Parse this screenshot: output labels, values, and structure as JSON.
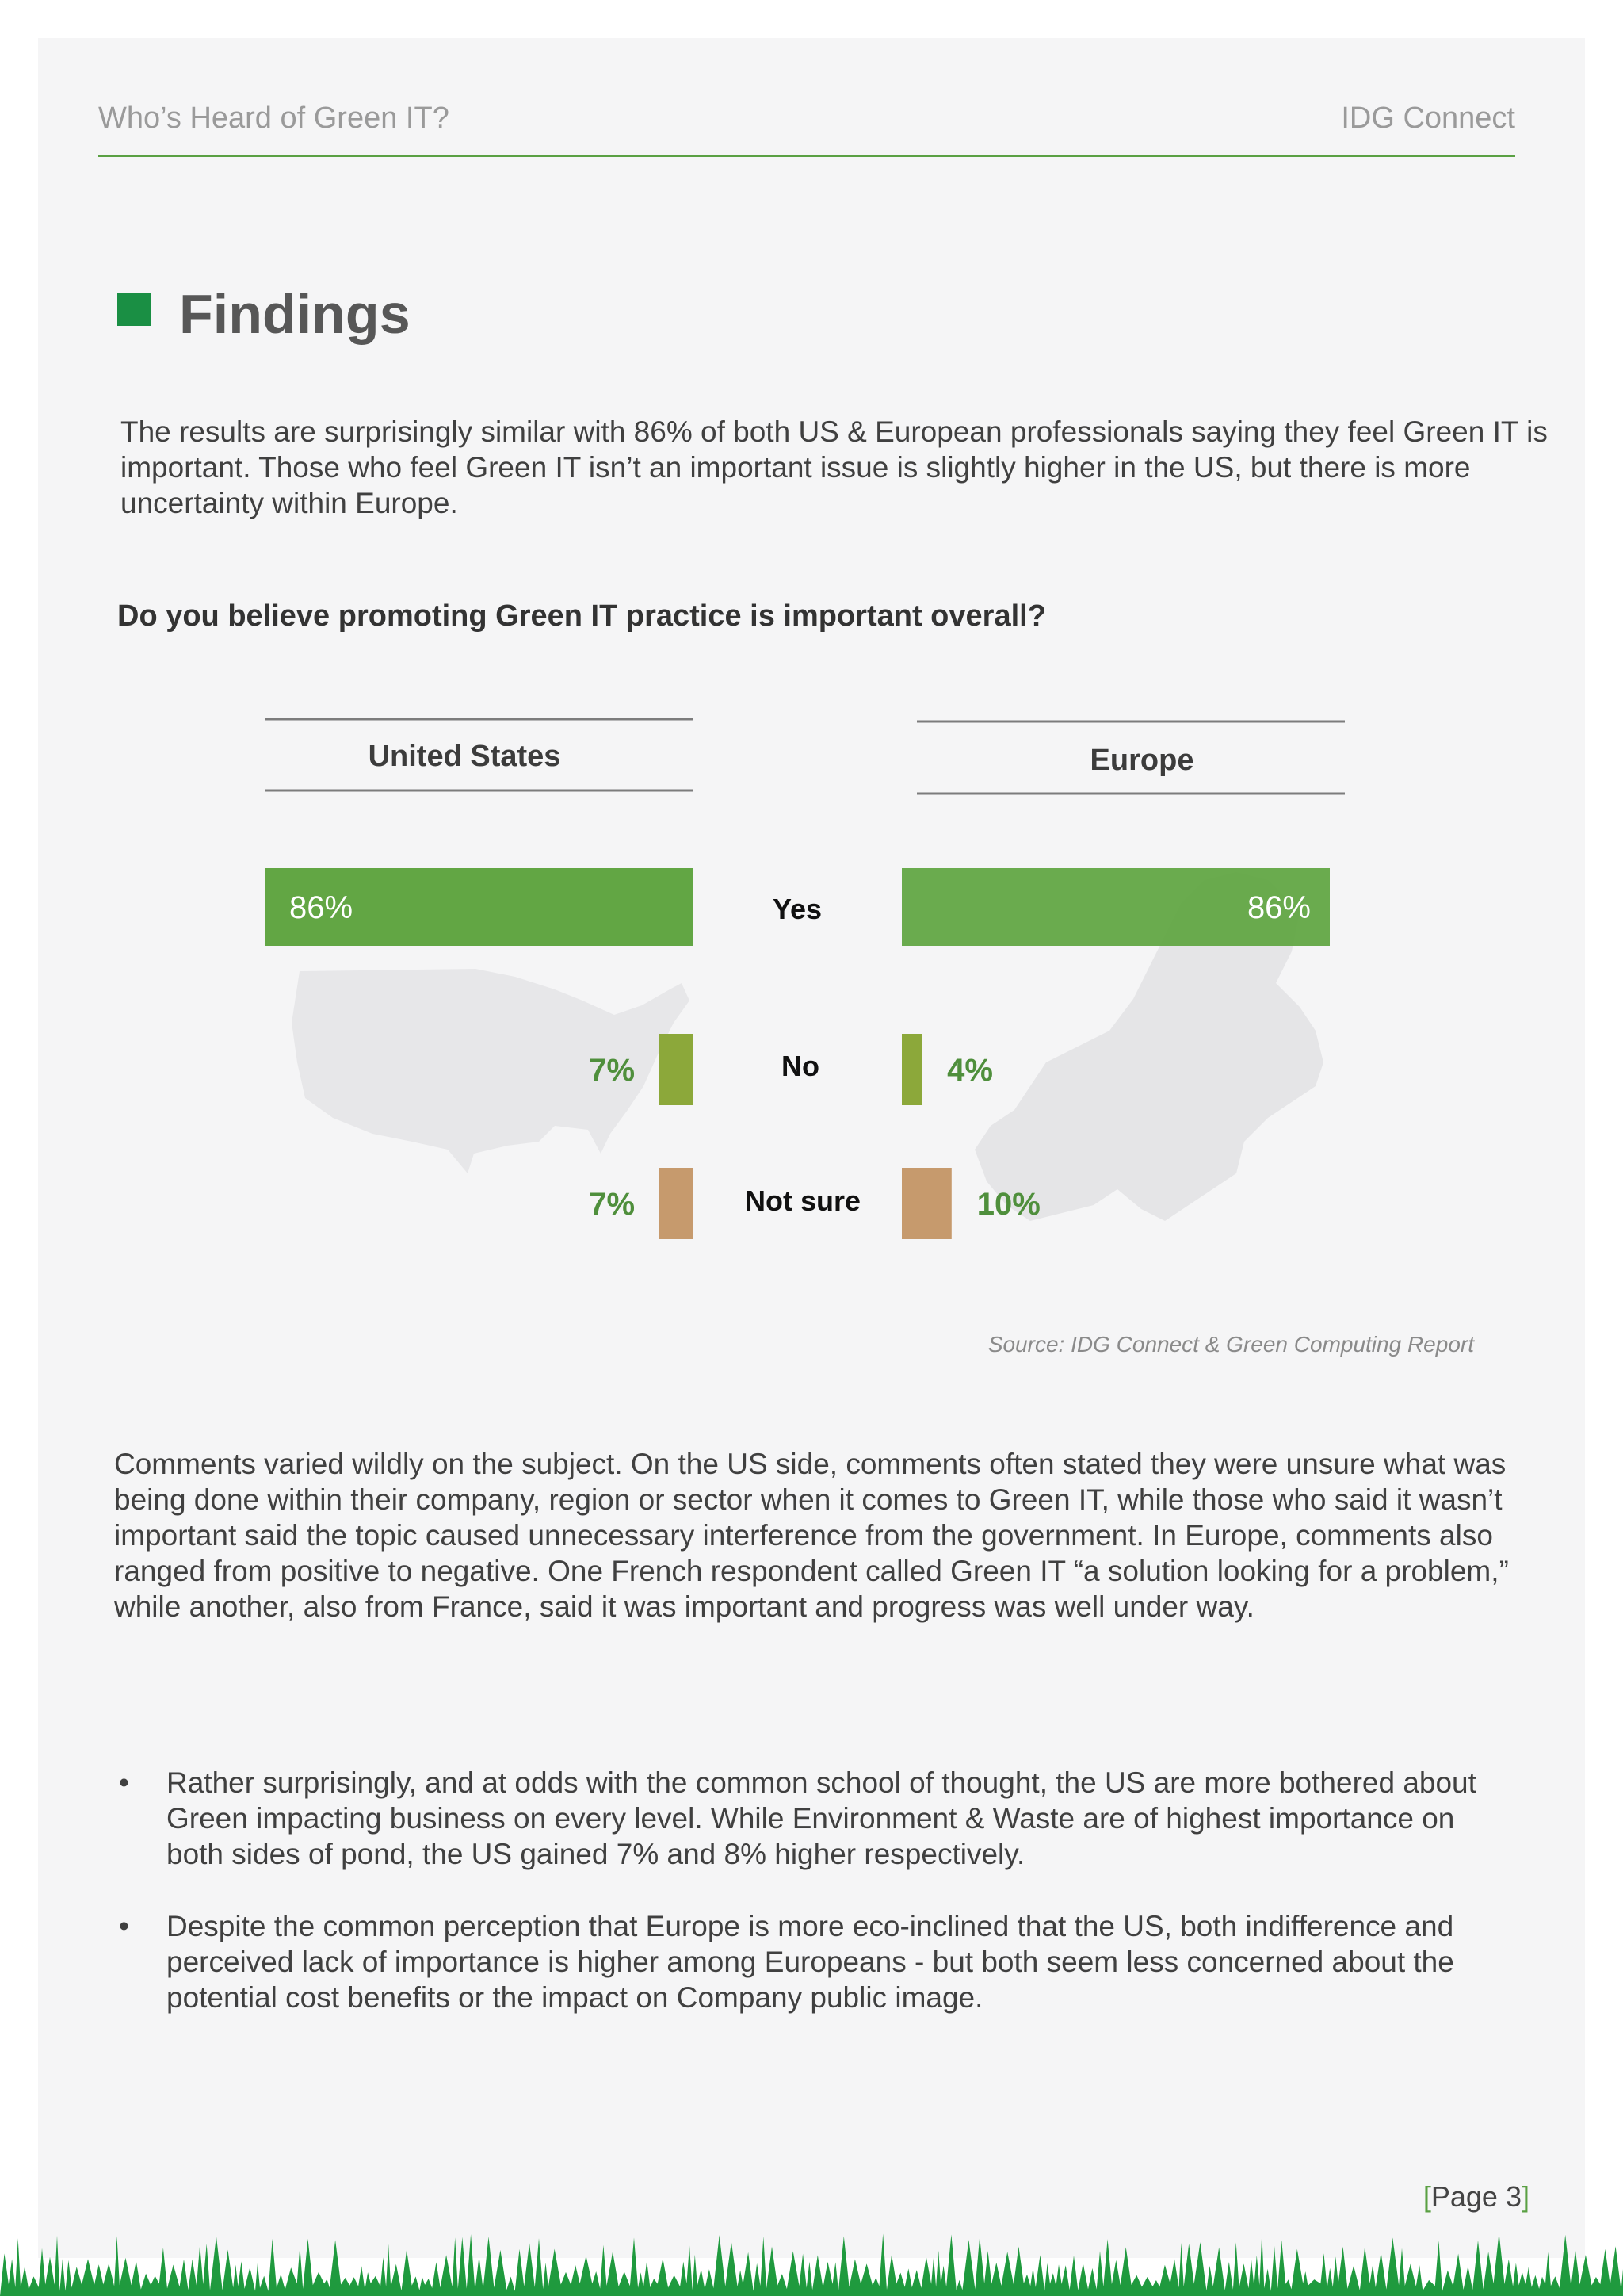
{
  "header": {
    "left_title": "Who’s Heard of Green IT?",
    "right_title": "IDG Connect"
  },
  "section": {
    "title": "Findings"
  },
  "intro_paragraph": "The results are surprisingly similar with 86% of both US & European professionals saying they feel Green IT is important. Those who feel Green IT isn’t an important issue is slightly higher in the US, but there is more uncertainty within Europe.",
  "question": "Do you believe promoting Green IT practice is important overall?",
  "chart_data": {
    "type": "bar",
    "title": "",
    "categories": [
      "Yes",
      "No",
      "Not sure"
    ],
    "series": [
      {
        "name": "United States",
        "values": [
          86,
          7,
          7
        ],
        "labels": [
          "86%",
          "7%",
          "7%"
        ]
      },
      {
        "name": "Europe",
        "values": [
          86,
          4,
          10
        ],
        "labels": [
          "86%",
          "4%",
          "10%"
        ]
      }
    ],
    "unit": "%",
    "xlim": [
      0,
      86
    ],
    "orientation": "horizontal, mirrored (US bars grow leftward, Europe bars grow rightward)",
    "colors": {
      "Yes": "#62a644",
      "No": "#8ca83a",
      "Not sure": "#c69a6d"
    },
    "background": "faded maps of United States and Europe"
  },
  "source_note": "Source: IDG Connect & Green Computing Report",
  "comments_paragraph": "Comments varied wildly on the subject. On the US side, comments often stated they were unsure what was being done within their company, region or sector when it comes to Green IT, while those who said it wasn’t important said the topic caused unnecessary interference from the government. In Europe, comments also ranged from positive to negative. One French respondent called Green IT “a solution looking for a problem,” while another, also from France, said it was important and progress was well under way.",
  "bullets": [
    "Rather surprisingly, and at odds with the common school of thought, the US are more bothered about Green impacting business on every level. While Environment & Waste are of highest importance on both sides of pond, the US gained 7% and 8% higher respectively.",
    "Despite the common perception that Europe is more eco-inclined that the US, both indifference and perceived lack of importance is higher among Europeans - but both seem less concerned about the potential cost benefits or the impact on Company public image."
  ],
  "footer": {
    "page_label": "Page 3"
  },
  "colors": {
    "accent_green": "#5aa043",
    "heading_square": "#1a8f44",
    "page_background": "#f5f5f6"
  }
}
